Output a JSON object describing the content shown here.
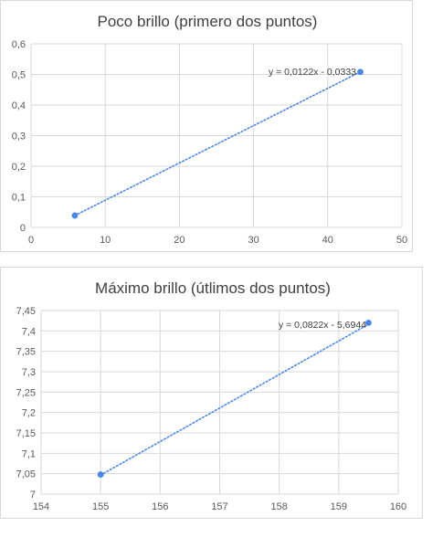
{
  "chart_data": [
    {
      "type": "scatter",
      "title": "Poco brillo (primero dos puntos)",
      "xlabel": "",
      "ylabel": "",
      "xlim": [
        0,
        50
      ],
      "ylim": [
        0,
        0.6
      ],
      "x_ticks": [
        "0",
        "10",
        "20",
        "30",
        "40",
        "50"
      ],
      "x_tick_values": [
        0,
        10,
        20,
        30,
        40,
        50
      ],
      "y_ticks": [
        "0",
        "0,1",
        "0,2",
        "0,3",
        "0,4",
        "0,5",
        "0,6"
      ],
      "y_tick_values": [
        0,
        0.1,
        0.2,
        0.3,
        0.4,
        0.5,
        0.6
      ],
      "points": [
        {
          "x": 5.9,
          "y": 0.039
        },
        {
          "x": 44.4,
          "y": 0.508
        }
      ],
      "trendline": {
        "type": "linear",
        "slope": 0.0122,
        "intercept": -0.0333,
        "label": "y = 0,0122x - 0,0333"
      },
      "grid": true,
      "color": "#4a86e8"
    },
    {
      "type": "scatter",
      "title": "Máximo brillo (útlimos dos puntos)",
      "xlabel": "",
      "ylabel": "",
      "xlim": [
        154,
        160
      ],
      "ylim": [
        7,
        7.45
      ],
      "x_ticks": [
        "154",
        "155",
        "156",
        "157",
        "158",
        "159",
        "160"
      ],
      "x_tick_values": [
        154,
        155,
        156,
        157,
        158,
        159,
        160
      ],
      "y_ticks": [
        "7",
        "7,05",
        "7,1",
        "7,15",
        "7,2",
        "7,25",
        "7,3",
        "7,35",
        "7,4",
        "7,45"
      ],
      "y_tick_values": [
        7,
        7.05,
        7.1,
        7.15,
        7.2,
        7.25,
        7.3,
        7.35,
        7.4,
        7.45
      ],
      "points": [
        {
          "x": 155,
          "y": 7.048
        },
        {
          "x": 159.5,
          "y": 7.42
        }
      ],
      "trendline": {
        "type": "linear",
        "slope": 0.0822,
        "intercept": -5.6944,
        "label": "y = 0,0822x - 5,6944"
      },
      "grid": true,
      "color": "#4a86e8"
    }
  ]
}
